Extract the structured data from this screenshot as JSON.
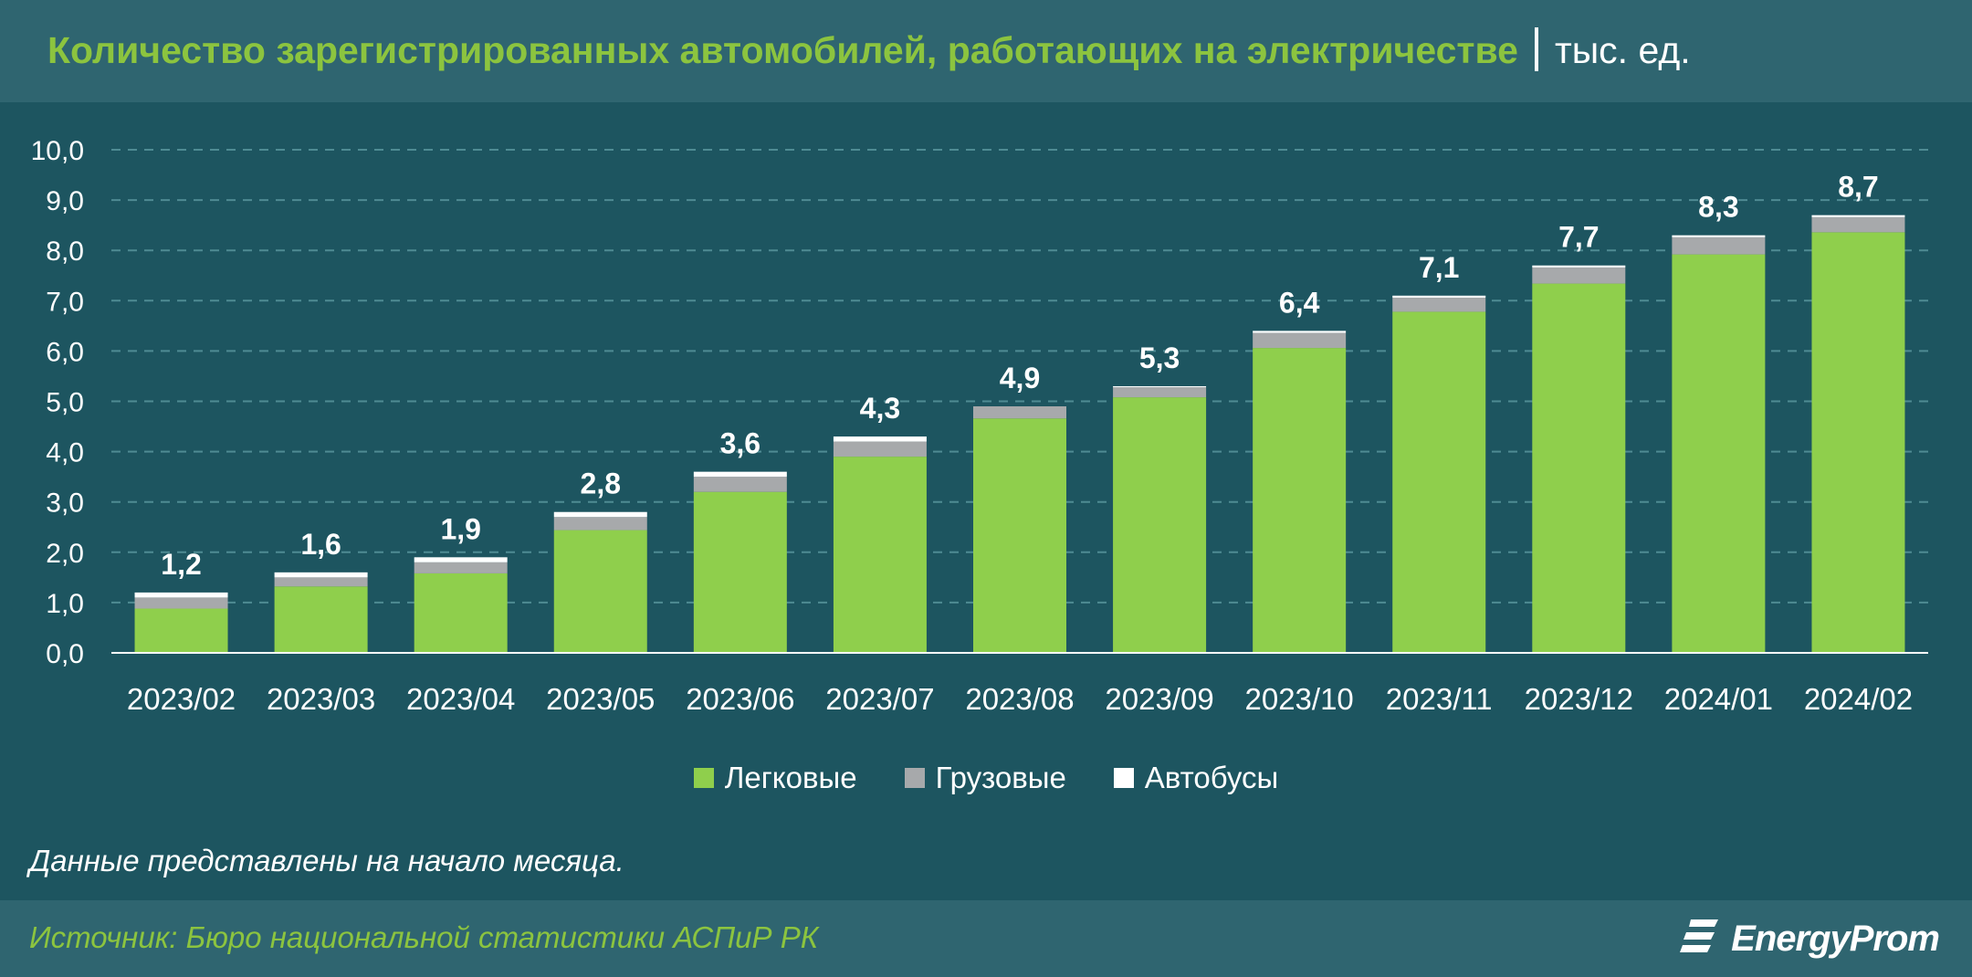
{
  "header": {
    "title": "Количество зарегистрированных автомобилей, работающих на электричестве",
    "unit": "тыс. ед."
  },
  "colors": {
    "background": "#1d5560",
    "band": "#2f6570",
    "accent": "#8cc43f",
    "passenger": "#8fcf4c",
    "cargo": "#a7a9ab",
    "bus": "#ffffff",
    "grid": "#4f8b93"
  },
  "chart_data": {
    "type": "bar",
    "stacked": true,
    "categories": [
      "2023/02",
      "2023/03",
      "2023/04",
      "2023/05",
      "2023/06",
      "2023/07",
      "2023/08",
      "2023/09",
      "2023/10",
      "2023/11",
      "2023/12",
      "2024/01",
      "2024/02"
    ],
    "series": [
      {
        "name": "Легковые",
        "values": [
          0.88,
          1.32,
          1.58,
          2.44,
          3.2,
          3.9,
          4.66,
          5.08,
          6.06,
          6.78,
          7.34,
          7.92,
          8.36
        ]
      },
      {
        "name": "Грузовые",
        "values": [
          0.22,
          0.18,
          0.22,
          0.26,
          0.3,
          0.3,
          0.24,
          0.2,
          0.3,
          0.28,
          0.32,
          0.34,
          0.3
        ]
      },
      {
        "name": "Автобусы",
        "values": [
          0.1,
          0.1,
          0.1,
          0.1,
          0.1,
          0.1,
          0.0,
          0.02,
          0.04,
          0.04,
          0.04,
          0.04,
          0.04
        ]
      }
    ],
    "totals": [
      "1,2",
      "1,6",
      "1,9",
      "2,8",
      "3,6",
      "4,3",
      "4,9",
      "5,3",
      "6,4",
      "7,1",
      "7,7",
      "8,3",
      "8,7"
    ],
    "y_ticks": [
      "0,0",
      "1,0",
      "2,0",
      "3,0",
      "4,0",
      "5,0",
      "6,0",
      "7,0",
      "8,0",
      "9,0",
      "10,0"
    ],
    "ylim": [
      0,
      10
    ],
    "grid": true,
    "legend_position": "bottom"
  },
  "legend": {
    "passenger": "Легковые",
    "cargo": "Грузовые",
    "bus": "Автобусы"
  },
  "note": "Данные представлены на начало месяца.",
  "footer": {
    "source": "Источник: Бюро национальной статистики АСПиР РК",
    "logo": "EnergyProm"
  }
}
